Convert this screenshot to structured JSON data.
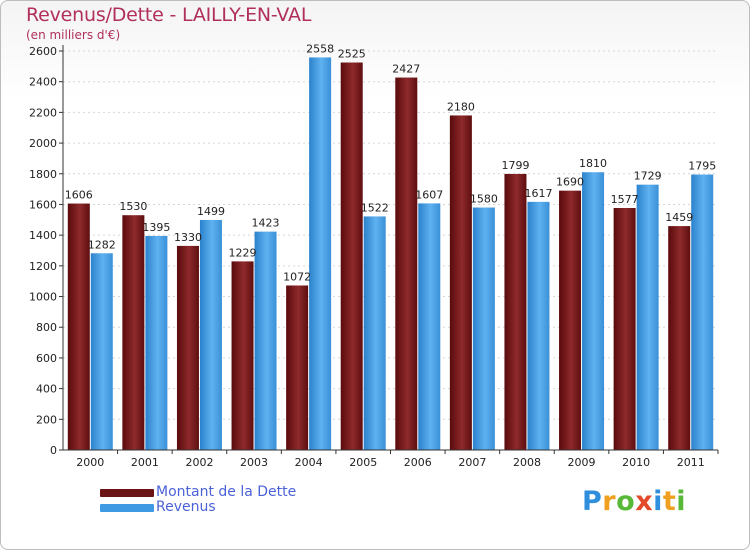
{
  "chart_data": {
    "type": "bar",
    "title": "Revenus/Dette - LAILLY-EN-VAL",
    "subtitle": "(en milliers d'€)",
    "categories": [
      "2000",
      "2001",
      "2002",
      "2003",
      "2004",
      "2005",
      "2006",
      "2007",
      "2008",
      "2009",
      "2010",
      "2011"
    ],
    "series": [
      {
        "name": "Montant de la Dette",
        "values": [
          1606,
          1530,
          1330,
          1229,
          1072,
          2525,
          2427,
          2180,
          1799,
          1690,
          1577,
          1459
        ],
        "color": "#7a1a1c"
      },
      {
        "name": "Revenus",
        "values": [
          1282,
          1395,
          1499,
          1423,
          2558,
          1522,
          1607,
          1580,
          1617,
          1810,
          1729,
          1795
        ],
        "color": "#4aa3e8"
      }
    ],
    "ylim": [
      0,
      2600
    ],
    "yticks": [
      0,
      200,
      400,
      600,
      800,
      1000,
      1200,
      1400,
      1600,
      1800,
      2000,
      2200,
      2400,
      2600
    ],
    "grid": true,
    "legend_position": "bottom-left"
  },
  "logo": {
    "letters": [
      "P",
      "r",
      "o",
      "x",
      "i",
      "t",
      "i"
    ],
    "colors": [
      "#2f8fdc",
      "#f0a020",
      "#58b838",
      "#e24a2a",
      "#2f8fdc",
      "#f0a020",
      "#58b838"
    ]
  }
}
